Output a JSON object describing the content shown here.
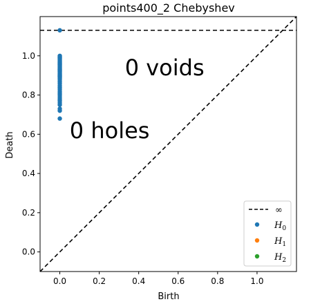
{
  "chart_data": {
    "type": "scatter",
    "title": "points400_2 Chebyshev",
    "xlabel": "Birth",
    "ylabel": "Death",
    "xlim": [
      -0.1,
      1.2
    ],
    "ylim": [
      -0.1,
      1.2
    ],
    "x_ticks": [
      "0.0",
      "0.2",
      "0.4",
      "0.6",
      "0.8",
      "1.0"
    ],
    "y_ticks": [
      "0.0",
      "0.2",
      "0.4",
      "0.6",
      "0.8",
      "1.0"
    ],
    "x_tick_values": [
      0,
      0.2,
      0.4,
      0.6,
      0.8,
      1.0
    ],
    "y_tick_values": [
      0,
      0.2,
      0.4,
      0.6,
      0.8,
      1.0
    ],
    "infinity_value": 1.13,
    "diagonal": true,
    "grid": false,
    "legend_position": "bottom-right",
    "legend": {
      "infinity_label": "∞",
      "entries": [
        {
          "label": "H",
          "subscript": "0",
          "color": "#1f77b4"
        },
        {
          "label": "H",
          "subscript": "1",
          "color": "#ff7f0e"
        },
        {
          "label": "H",
          "subscript": "2",
          "color": "#2ca02c"
        }
      ]
    },
    "annotations": [
      {
        "text": "0 voids",
        "x": 0.33,
        "y": 0.9
      },
      {
        "text": "0 holes",
        "x": 0.05,
        "y": 0.58
      }
    ],
    "series": [
      {
        "name": "H0",
        "color": "#1f77b4",
        "points": [
          [
            0,
            1.13
          ],
          [
            0,
            1.0
          ],
          [
            0,
            0.995
          ],
          [
            0,
            0.99
          ],
          [
            0,
            0.985
          ],
          [
            0,
            0.98
          ],
          [
            0,
            0.975
          ],
          [
            0,
            0.97
          ],
          [
            0,
            0.965
          ],
          [
            0,
            0.96
          ],
          [
            0,
            0.955
          ],
          [
            0,
            0.95
          ],
          [
            0,
            0.945
          ],
          [
            0,
            0.94
          ],
          [
            0,
            0.935
          ],
          [
            0,
            0.93
          ],
          [
            0,
            0.925
          ],
          [
            0,
            0.92
          ],
          [
            0,
            0.915
          ],
          [
            0,
            0.91
          ],
          [
            0,
            0.905
          ],
          [
            0,
            0.9
          ],
          [
            0,
            0.895
          ],
          [
            0,
            0.89
          ],
          [
            0,
            0.885
          ],
          [
            0,
            0.88
          ],
          [
            0,
            0.87
          ],
          [
            0,
            0.86
          ],
          [
            0,
            0.85
          ],
          [
            0,
            0.84
          ],
          [
            0,
            0.83
          ],
          [
            0,
            0.82
          ],
          [
            0,
            0.81
          ],
          [
            0,
            0.8
          ],
          [
            0,
            0.79
          ],
          [
            0,
            0.78
          ],
          [
            0,
            0.77
          ],
          [
            0,
            0.76
          ],
          [
            0,
            0.75
          ],
          [
            0,
            0.73
          ],
          [
            0,
            0.72
          ],
          [
            0,
            0.68
          ]
        ]
      },
      {
        "name": "H1",
        "color": "#ff7f0e",
        "points": []
      },
      {
        "name": "H2",
        "color": "#2ca02c",
        "points": []
      }
    ]
  }
}
